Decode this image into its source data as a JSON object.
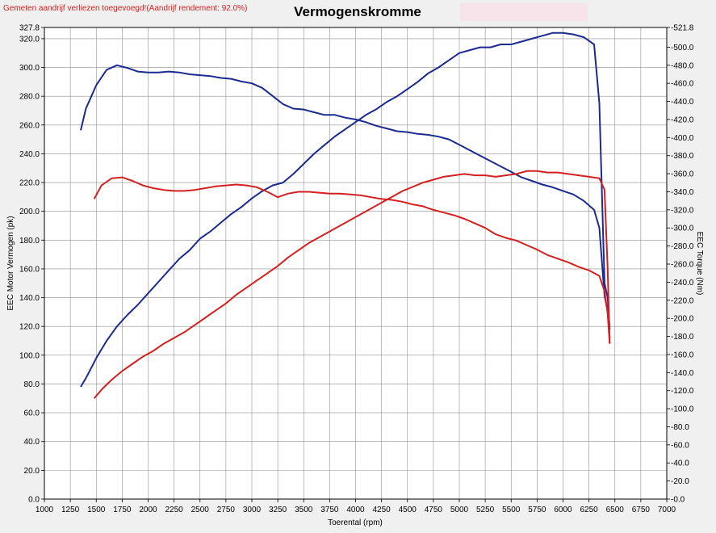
{
  "note": "Gemeten aandrijf verliezen toegevoegd!(Aandrijf rendement: 92.0%)",
  "colors": {
    "background": "#f0f0f0",
    "blue": "#1a2a90",
    "red": "#d42020",
    "grid": "#909090",
    "note": "#d42020",
    "title_box": "#f6e4ea"
  },
  "chart_data": {
    "type": "line",
    "title": "Vermogenskromme",
    "xlabel": "Toerental (rpm)",
    "ylabel_left": "EEC Motor Vermogen (pk)",
    "ylabel_right": "EEC Torque (Nm)",
    "xlim": [
      1000,
      7000
    ],
    "ylim_left": [
      0,
      327.8
    ],
    "ylim_right": [
      0,
      521.8
    ],
    "x_ticks": [
      "1000",
      "1250",
      "1500",
      "1750",
      "2000",
      "2250",
      "2500",
      "2750",
      "3000",
      "3250",
      "3500",
      "3750",
      "4000",
      "4250",
      "4500",
      "4750",
      "5000",
      "5250",
      "5500",
      "5750",
      "6000",
      "6250",
      "6500",
      "6750",
      "7000"
    ],
    "y_left_ticks": [
      "0.0",
      "20.0",
      "40.0",
      "60.0",
      "80.0",
      "100.0",
      "120.0",
      "140.0",
      "160.0",
      "180.0",
      "200.0",
      "220.0",
      "240.0",
      "260.0",
      "280.0",
      "300.0",
      "320.0",
      "327.8"
    ],
    "y_right_ticks": [
      "0.0",
      "20.0",
      "40.0",
      "60.0",
      "80.0",
      "100.0",
      "120.0",
      "140.0",
      "160.0",
      "180.0",
      "200.0",
      "220.0",
      "240.0",
      "260.0",
      "280.0",
      "300.0",
      "320.0",
      "340.0",
      "360.0",
      "380.0",
      "400.0",
      "420.0",
      "440.0",
      "460.0",
      "480.0",
      "500.0",
      "521.8"
    ],
    "grid": true,
    "series": [
      {
        "axis": "left",
        "color": "#1a2a90",
        "x": [
          1350,
          1400,
          1500,
          1600,
          1700,
          1800,
          1900,
          2000,
          2100,
          2200,
          2300,
          2400,
          2500,
          2600,
          2700,
          2800,
          2900,
          3000,
          3100,
          3200,
          3300,
          3400,
          3500,
          3600,
          3700,
          3800,
          3900,
          4000,
          4100,
          4200,
          4300,
          4400,
          4500,
          4600,
          4700,
          4800,
          4900,
          5000,
          5100,
          5200,
          5300,
          5400,
          5500,
          5600,
          5700,
          5800,
          5900,
          6000,
          6100,
          6200,
          6300,
          6350,
          6400,
          6430,
          6450
        ],
        "y": [
          78,
          84,
          98,
          110,
          120,
          128,
          135,
          143,
          151,
          159,
          167,
          173,
          181,
          186,
          192,
          198,
          203,
          209,
          214,
          218,
          220,
          226,
          233,
          240,
          246,
          252,
          257,
          262,
          267,
          271,
          276,
          280,
          285,
          290,
          296,
          300,
          305,
          310,
          312,
          314,
          314,
          316,
          316,
          318,
          320,
          322,
          324,
          324,
          323,
          321,
          316,
          275,
          150,
          140,
          118
        ]
      },
      {
        "axis": "right",
        "color": "#1a2a90",
        "x": [
          1350,
          1400,
          1500,
          1600,
          1700,
          1800,
          1900,
          2000,
          2100,
          2200,
          2300,
          2400,
          2500,
          2600,
          2700,
          2800,
          2900,
          3000,
          3100,
          3200,
          3300,
          3400,
          3500,
          3600,
          3700,
          3800,
          3900,
          4000,
          4100,
          4200,
          4300,
          4400,
          4500,
          4600,
          4700,
          4800,
          4900,
          5000,
          5100,
          5200,
          5300,
          5400,
          5500,
          5600,
          5700,
          5800,
          5900,
          6000,
          6100,
          6200,
          6300,
          6350,
          6400,
          6430,
          6450
        ],
        "y": [
          408,
          432,
          458,
          475,
          480,
          477,
          473,
          472,
          472,
          473,
          472,
          470,
          469,
          468,
          466,
          465,
          462,
          460,
          455,
          446,
          437,
          432,
          431,
          428,
          425,
          425,
          422,
          420,
          417,
          413,
          410,
          407,
          406,
          404,
          403,
          401,
          398,
          392,
          386,
          380,
          374,
          368,
          362,
          356,
          352,
          348,
          345,
          341,
          337,
          330,
          320,
          300,
          225,
          208,
          178
        ]
      },
      {
        "axis": "left",
        "color": "#d42020",
        "x": [
          1480,
          1550,
          1650,
          1750,
          1850,
          1950,
          2050,
          2150,
          2250,
          2350,
          2450,
          2550,
          2650,
          2750,
          2850,
          2950,
          3050,
          3150,
          3250,
          3350,
          3450,
          3550,
          3650,
          3750,
          3850,
          3950,
          4050,
          4150,
          4250,
          4350,
          4450,
          4550,
          4650,
          4750,
          4850,
          4950,
          5050,
          5150,
          5250,
          5350,
          5450,
          5550,
          5650,
          5750,
          5850,
          5950,
          6050,
          6150,
          6250,
          6350,
          6400,
          6430,
          6450
        ],
        "y": [
          70,
          76,
          83,
          89,
          94,
          99,
          103,
          108,
          112,
          116,
          121,
          126,
          131,
          136,
          142,
          147,
          152,
          157,
          162,
          168,
          173,
          178,
          182,
          186,
          190,
          194,
          198,
          202,
          206,
          210,
          214,
          217,
          220,
          222,
          224,
          225,
          226,
          225,
          225,
          224,
          225,
          226,
          228,
          228,
          227,
          227,
          226,
          225,
          224,
          223,
          215,
          160,
          108
        ]
      },
      {
        "axis": "right",
        "color": "#d42020",
        "x": [
          1480,
          1550,
          1650,
          1750,
          1850,
          1950,
          2050,
          2150,
          2250,
          2350,
          2450,
          2550,
          2650,
          2750,
          2850,
          2950,
          3050,
          3150,
          3250,
          3350,
          3450,
          3550,
          3650,
          3750,
          3850,
          3950,
          4050,
          4150,
          4250,
          4350,
          4450,
          4550,
          4650,
          4750,
          4850,
          4950,
          5050,
          5150,
          5250,
          5350,
          5450,
          5550,
          5650,
          5750,
          5850,
          5950,
          6050,
          6150,
          6250,
          6350,
          6400,
          6430,
          6450
        ],
        "y": [
          332,
          347,
          355,
          356,
          352,
          347,
          344,
          342,
          341,
          341,
          342,
          344,
          346,
          347,
          348,
          347,
          345,
          340,
          334,
          338,
          340,
          340,
          339,
          338,
          338,
          337,
          336,
          334,
          332,
          331,
          329,
          326,
          324,
          320,
          317,
          314,
          310,
          305,
          300,
          293,
          289,
          286,
          281,
          276,
          270,
          266,
          262,
          257,
          253,
          247,
          230,
          205,
          172
        ]
      }
    ]
  }
}
